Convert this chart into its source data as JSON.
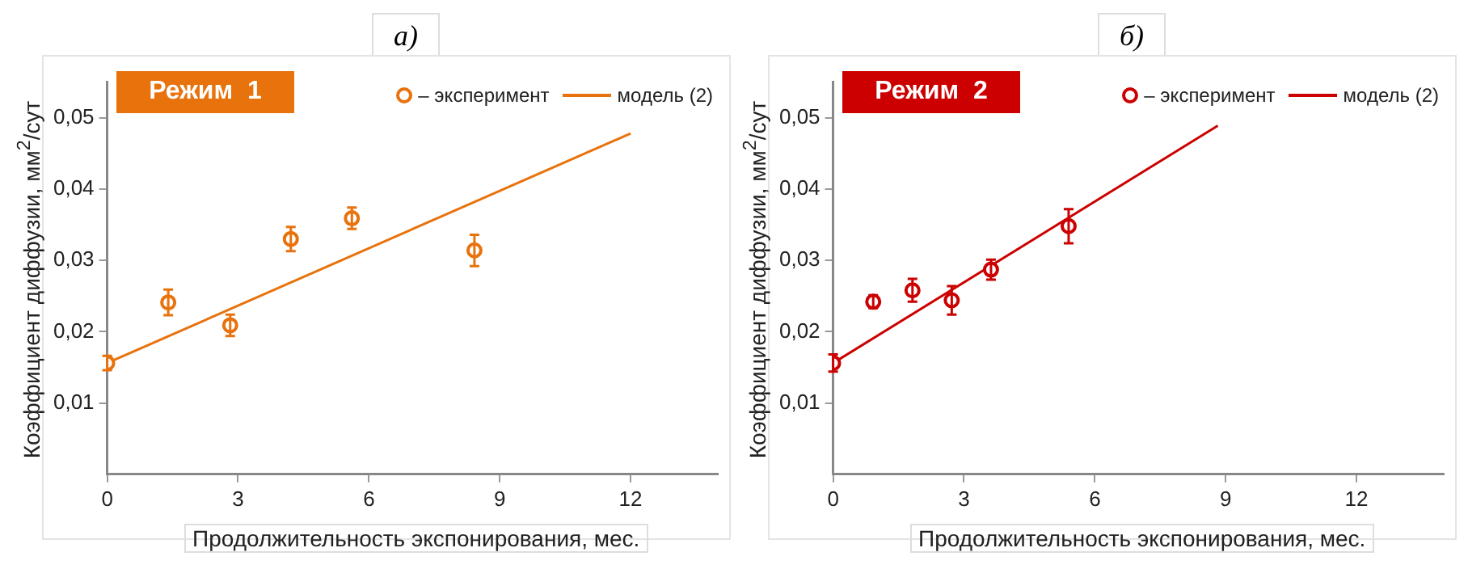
{
  "chart_data": [
    {
      "type": "scatter",
      "title": "а)",
      "xlabel": "Продолжительность экспонирования, мес.",
      "ylabel": "Коэффициент диффузии, мм$^{2}$/сут",
      "annotations": [
        "Режим  1"
      ],
      "xlim": [
        0,
        14
      ],
      "xticks": [
        0,
        3,
        6,
        9,
        12
      ],
      "ylim": [
        0,
        0.055
      ],
      "yticks": [
        {
          "value": 0.01,
          "label": "0,01"
        },
        {
          "value": 0.02,
          "label": "0,02"
        },
        {
          "value": 0.03,
          "label": "0,03"
        },
        {
          "value": 0.04,
          "label": "0,04"
        },
        {
          "value": 0.05,
          "label": "0,05"
        }
      ],
      "grid": false,
      "legend": "top right",
      "series": [
        {
          "name": "– эксперимент",
          "type": "scatter",
          "marker": "circle",
          "color": "#e8720c",
          "x": [
            0,
            1.4,
            2.82,
            4.21,
            5.61,
            8.42
          ],
          "values": [
            0.0156,
            0.0241,
            0.0209,
            0.033,
            0.0359,
            0.0314
          ],
          "errors": [
            0.001,
            0.0018,
            0.0015,
            0.0017,
            0.0015,
            0.0022
          ]
        },
        {
          "name": "модель (2)",
          "type": "line",
          "color": "#e8720c",
          "x": [
            0,
            12
          ],
          "values": [
            0.0156,
            0.0478
          ]
        }
      ]
    },
    {
      "type": "scatter",
      "title": "б)",
      "xlabel": "Продолжительность экспонирования, мес.",
      "ylabel": "Коэффициент диффузии, мм$^{2}$/сут",
      "annotations": [
        "Режим  2"
      ],
      "xlim": [
        0,
        14
      ],
      "xticks": [
        0,
        3,
        6,
        9,
        12
      ],
      "ylim": [
        0,
        0.055
      ],
      "yticks": [
        {
          "value": 0.01,
          "label": "0,01"
        },
        {
          "value": 0.02,
          "label": "0,02"
        },
        {
          "value": 0.03,
          "label": "0,03"
        },
        {
          "value": 0.04,
          "label": "0,04"
        },
        {
          "value": 0.05,
          "label": "0,05"
        }
      ],
      "grid": false,
      "legend": "top right",
      "series": [
        {
          "name": "– эксперимент",
          "type": "scatter",
          "marker": "circle",
          "color": "#cc0000",
          "x": [
            0,
            0.92,
            1.82,
            2.72,
            3.62,
            5.4
          ],
          "values": [
            0.0156,
            0.0242,
            0.0258,
            0.0244,
            0.0287,
            0.0348
          ],
          "errors": [
            0.0012,
            0.0009,
            0.0016,
            0.002,
            0.0014,
            0.0024
          ]
        },
        {
          "name": "модель (2)",
          "type": "line",
          "color": "#cc0000",
          "x": [
            0,
            8.82
          ],
          "values": [
            0.0156,
            0.0489
          ]
        }
      ]
    }
  ]
}
